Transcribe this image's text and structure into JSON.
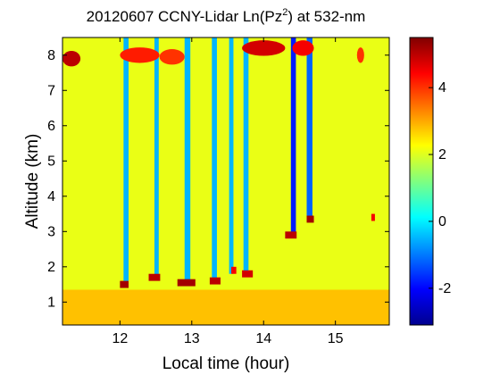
{
  "chart_data": {
    "type": "heatmap",
    "title_parts": {
      "prefix": "20120607 CCNY-Lidar Ln(Pz",
      "sup": "2",
      "suffix": ") at 532-nm"
    },
    "xlabel": "Local time (hour)",
    "ylabel": "Altitude (km)",
    "xlim": [
      11.2,
      15.75
    ],
    "ylim": [
      0.35,
      8.5
    ],
    "xticks": [
      12,
      13,
      14,
      15
    ],
    "yticks": [
      1,
      2,
      3,
      4,
      5,
      6,
      7,
      8
    ],
    "colorbar": {
      "colormap": "jet",
      "clim": [
        -3.1,
        5.5
      ],
      "ticks": [
        -2,
        0,
        2,
        4
      ]
    },
    "background_value": 2.1,
    "boundary_layer": {
      "top_km": 1.35,
      "value": 2.8
    },
    "cloud_free_columns": [
      {
        "x_start": 12.05,
        "x_end": 12.12,
        "value": -0.5,
        "cloud_base_km": 1.6
      },
      {
        "x_start": 12.48,
        "x_end": 12.54,
        "value": -0.5,
        "cloud_base_km": 1.75
      },
      {
        "x_start": 12.9,
        "x_end": 12.98,
        "value": -0.5,
        "cloud_base_km": 1.6
      },
      {
        "x_start": 13.28,
        "x_end": 13.35,
        "value": -0.5,
        "cloud_base_km": 1.65
      },
      {
        "x_start": 13.52,
        "x_end": 13.58,
        "value": -0.5,
        "cloud_base_km": 1.8
      },
      {
        "x_start": 13.72,
        "x_end": 13.79,
        "value": -0.5,
        "cloud_base_km": 1.85
      },
      {
        "x_start": 14.38,
        "x_end": 14.45,
        "value": -1.8,
        "cloud_base_km": 2.9
      },
      {
        "x_start": 14.6,
        "x_end": 14.68,
        "value": -1.2,
        "cloud_base_km": 3.4
      }
    ],
    "cloud_layers": [
      {
        "x_start": 11.2,
        "x_end": 11.45,
        "altitude_km": 7.9,
        "value": 5.0
      },
      {
        "x_start": 12.0,
        "x_end": 12.55,
        "altitude_km": 8.0,
        "value": 4.2
      },
      {
        "x_start": 12.55,
        "x_end": 12.9,
        "altitude_km": 7.95,
        "value": 4.0
      },
      {
        "x_start": 13.7,
        "x_end": 14.3,
        "altitude_km": 8.2,
        "value": 4.8
      },
      {
        "x_start": 14.4,
        "x_end": 14.7,
        "altitude_km": 8.2,
        "value": 4.5
      },
      {
        "x_start": 15.3,
        "x_end": 15.4,
        "altitude_km": 8.0,
        "value": 4.0
      }
    ],
    "low_cloud_bases": [
      {
        "x_start": 12.0,
        "x_end": 12.12,
        "altitude_km": 1.5,
        "value": 5.2
      },
      {
        "x_start": 12.4,
        "x_end": 12.56,
        "altitude_km": 1.7,
        "value": 5.0
      },
      {
        "x_start": 12.8,
        "x_end": 13.05,
        "altitude_km": 1.55,
        "value": 5.2
      },
      {
        "x_start": 13.25,
        "x_end": 13.4,
        "altitude_km": 1.6,
        "value": 5.0
      },
      {
        "x_start": 13.55,
        "x_end": 13.62,
        "altitude_km": 1.9,
        "value": 4.5
      },
      {
        "x_start": 13.7,
        "x_end": 13.85,
        "altitude_km": 1.8,
        "value": 4.8
      },
      {
        "x_start": 14.3,
        "x_end": 14.46,
        "altitude_km": 2.9,
        "value": 5.0
      },
      {
        "x_start": 14.6,
        "x_end": 14.7,
        "altitude_km": 3.35,
        "value": 5.2
      },
      {
        "x_start": 15.5,
        "x_end": 15.55,
        "altitude_km": 3.4,
        "value": 4.5
      }
    ]
  }
}
